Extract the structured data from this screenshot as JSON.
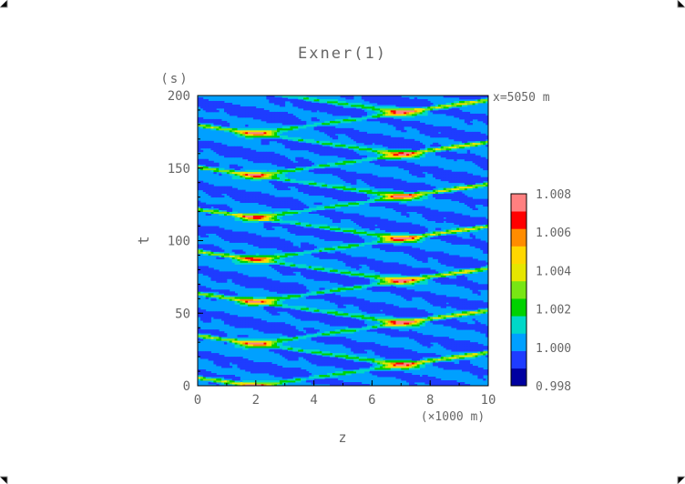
{
  "chart_data": {
    "type": "heatmap",
    "title": "Exner(1)",
    "xlabel": "z",
    "xunit": "(×1000 m)",
    "ylabel": "t",
    "yunit": "(s)",
    "annotation": "x=5050 m",
    "xlim": [
      0,
      10
    ],
    "ylim": [
      0,
      200
    ],
    "xticks": [
      "0",
      "2",
      "4",
      "6",
      "8",
      "10"
    ],
    "yticks": [
      "0",
      "50",
      "100",
      "150",
      "200"
    ],
    "colorbar": {
      "levels": [
        0.998,
        0.999,
        1.0,
        1.001,
        1.002,
        1.003,
        1.004,
        1.005,
        1.006,
        1.007,
        1.008
      ],
      "tick_labels": [
        "0.998",
        "1.000",
        "1.002",
        "1.004",
        "1.006",
        "1.008"
      ],
      "colors": [
        "#0000a0",
        "#1e3cff",
        "#00a0ff",
        "#00d8c8",
        "#00d200",
        "#78e614",
        "#e6e600",
        "#ffd700",
        "#ff8c00",
        "#ff0000",
        "#ff8080"
      ]
    },
    "pattern": {
      "sources_z": [
        2,
        7
      ],
      "source_period_s": 29,
      "source_phase_s": [
        0,
        14.5
      ],
      "wave_speed_km_per_s": 0.35
    }
  }
}
